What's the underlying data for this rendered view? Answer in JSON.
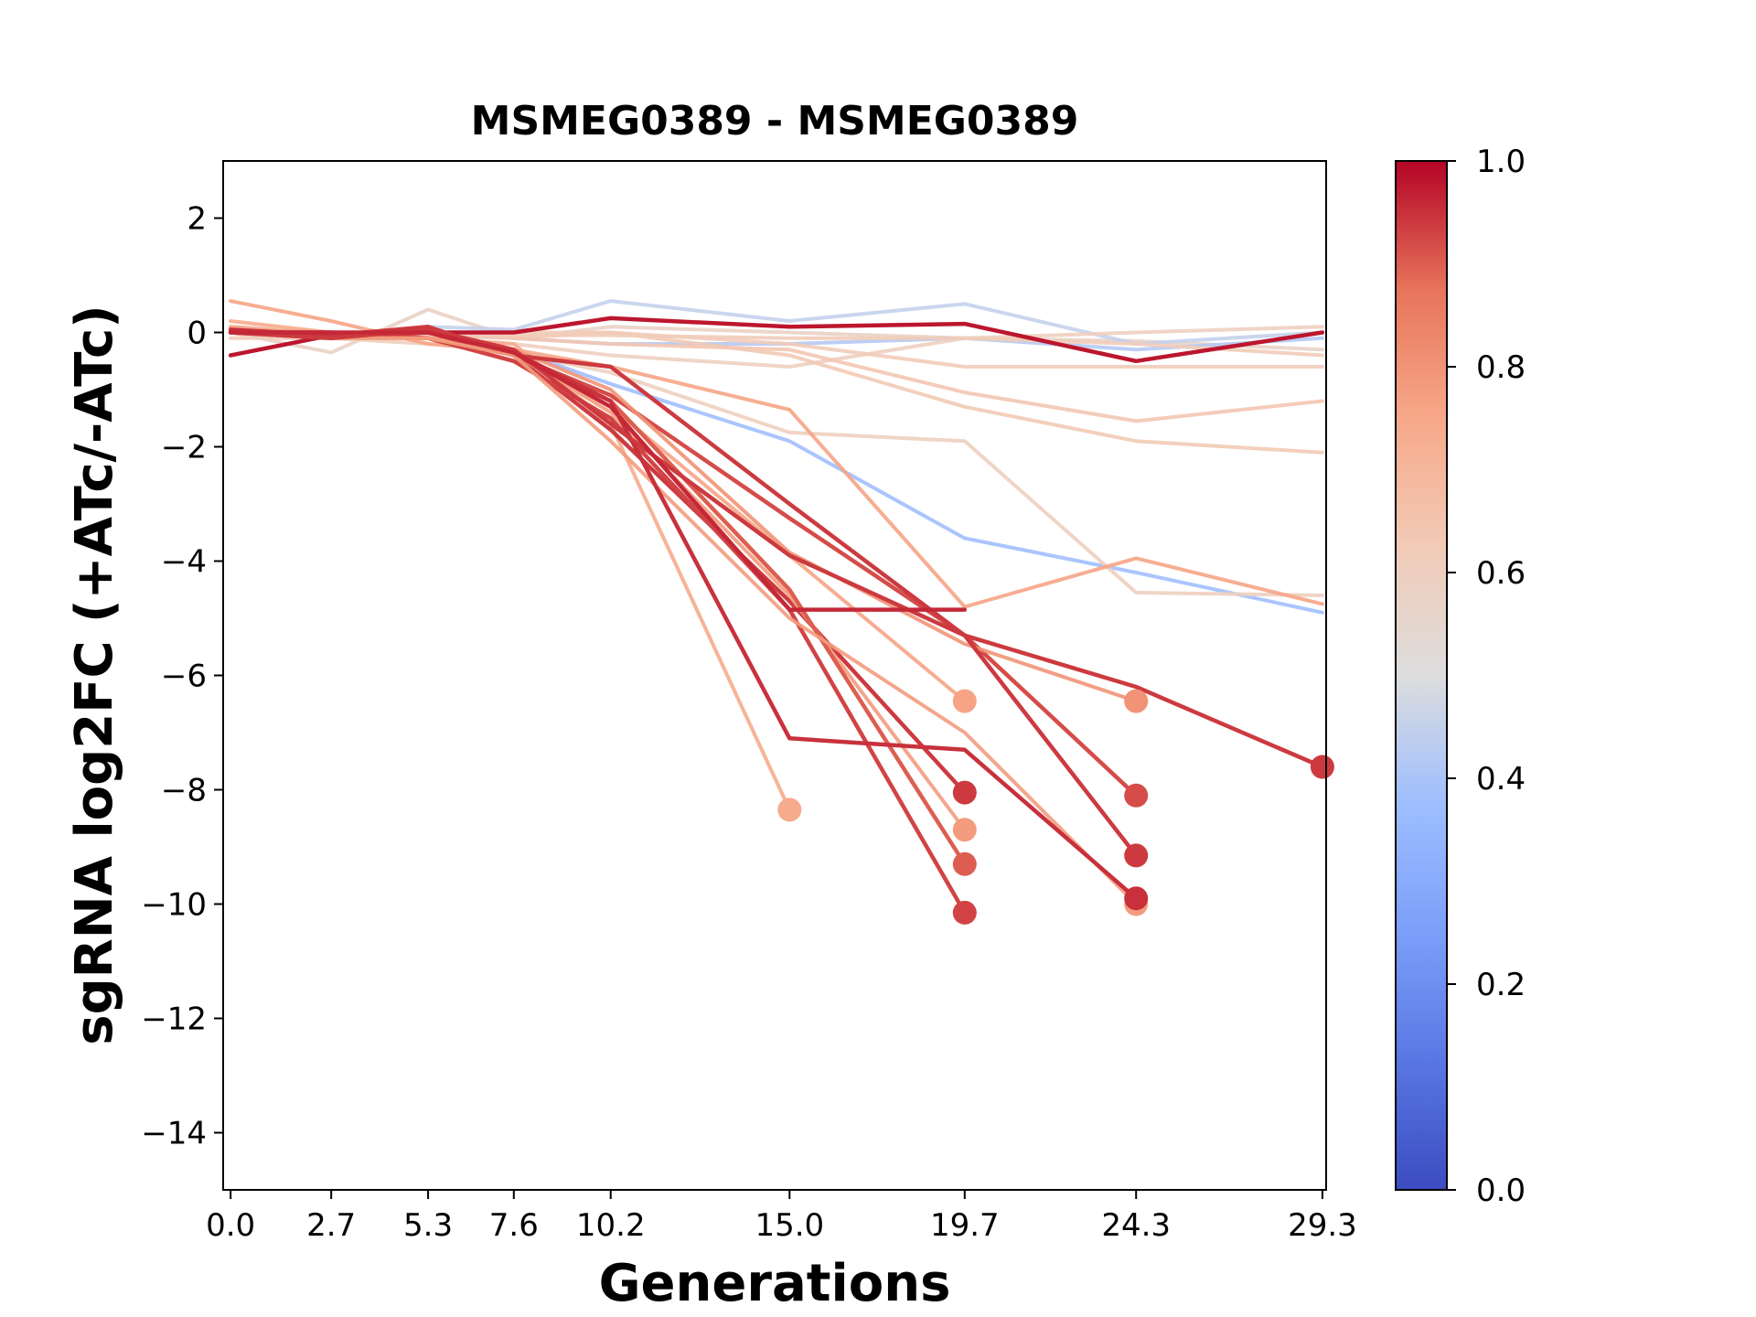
{
  "chart_data": {
    "type": "line",
    "title": "MSMEG0389 - MSMEG0389",
    "xlabel": "Generations",
    "ylabel": "sgRNA log2FC (+ATc/-ATc)",
    "x_ticks": [
      "0.0",
      "2.7",
      "5.3",
      "7.6",
      "10.2",
      "15.0",
      "19.7",
      "24.3",
      "29.3"
    ],
    "x_tick_values": [
      0.0,
      2.7,
      5.3,
      7.6,
      10.2,
      15.0,
      19.7,
      24.3,
      29.3
    ],
    "y_ticks": [
      2,
      0,
      -2,
      -4,
      -6,
      -8,
      -10,
      -12,
      -14
    ],
    "y_tick_labels": [
      "2",
      "0",
      "−2",
      "−4",
      "−6",
      "−8",
      "−10",
      "−12",
      "−14"
    ],
    "xlim": [
      -0.2,
      29.4
    ],
    "ylim": [
      -15,
      3
    ],
    "grid": false,
    "legend": "none",
    "colorbar": {
      "colormap": "coolwarm",
      "range": [
        0.0,
        1.0
      ],
      "ticks": [
        "0.0",
        "0.2",
        "0.4",
        "0.6",
        "0.8",
        "1.0"
      ],
      "tick_values": [
        0.0,
        0.2,
        0.4,
        0.6,
        0.8,
        1.0
      ]
    },
    "series": [
      {
        "color_value": 0.58,
        "end_marker": false,
        "x": [
          0.0,
          2.7,
          5.3,
          7.6,
          10.2,
          15.0,
          19.7,
          24.3,
          29.3
        ],
        "y": [
          0.0,
          -0.35,
          0.4,
          -0.1,
          0.1,
          0.0,
          -0.1,
          -0.15,
          -0.3
        ]
      },
      {
        "color_value": 0.45,
        "end_marker": false,
        "x": [
          0.0,
          2.7,
          5.3,
          7.6,
          10.2,
          15.0,
          19.7,
          24.3,
          29.3
        ],
        "y": [
          0.0,
          -0.1,
          0.1,
          0.05,
          0.55,
          0.2,
          0.5,
          -0.2,
          0.0
        ]
      },
      {
        "color_value": 0.42,
        "end_marker": false,
        "x": [
          0.0,
          2.7,
          5.3,
          7.6,
          10.2,
          15.0,
          19.7,
          24.3,
          29.3
        ],
        "y": [
          0.1,
          0.0,
          -0.05,
          -0.1,
          -0.2,
          -0.2,
          -0.1,
          -0.3,
          -0.1
        ]
      },
      {
        "color_value": 0.38,
        "end_marker": false,
        "x": [
          0.0,
          2.7,
          5.3,
          7.6,
          10.2,
          15.0,
          19.7,
          24.3,
          29.3
        ],
        "y": [
          0.0,
          -0.1,
          0.0,
          -0.3,
          -0.9,
          -1.9,
          -3.6,
          -4.2,
          -4.9
        ]
      },
      {
        "color_value": 0.6,
        "end_marker": false,
        "x": [
          0.0,
          2.7,
          5.3,
          7.6,
          10.2,
          15.0,
          19.7,
          24.3,
          29.3
        ],
        "y": [
          0.05,
          0.0,
          -0.1,
          -0.2,
          -0.4,
          -0.6,
          -0.1,
          0.0,
          0.1
        ]
      },
      {
        "color_value": 0.62,
        "end_marker": false,
        "x": [
          0.0,
          2.7,
          5.3,
          7.6,
          10.2,
          15.0,
          19.7,
          24.3,
          29.3
        ],
        "y": [
          0.1,
          0.0,
          -0.1,
          0.0,
          0.0,
          -0.2,
          -0.6,
          -0.6,
          -0.6
        ]
      },
      {
        "color_value": 0.63,
        "end_marker": false,
        "x": [
          0.0,
          2.7,
          5.3,
          7.6,
          10.2,
          15.0,
          19.7,
          24.3,
          29.3
        ],
        "y": [
          0.0,
          -0.05,
          -0.05,
          -0.1,
          0.0,
          -0.4,
          -1.3,
          -1.9,
          -2.1
        ]
      },
      {
        "color_value": 0.64,
        "end_marker": false,
        "x": [
          0.0,
          2.7,
          5.3,
          7.6,
          10.2,
          15.0,
          19.7,
          24.3,
          29.3
        ],
        "y": [
          0.0,
          0.0,
          0.0,
          -0.1,
          -0.2,
          -0.3,
          -1.05,
          -1.55,
          -1.2
        ]
      },
      {
        "color_value": 0.6,
        "end_marker": false,
        "x": [
          0.0,
          2.7,
          5.3,
          7.6,
          10.2,
          15.0,
          19.7,
          24.3,
          29.3
        ],
        "y": [
          0.0,
          -0.1,
          -0.2,
          -0.35,
          -0.7,
          -1.75,
          -1.9,
          -4.55,
          -4.6
        ]
      },
      {
        "color_value": 0.62,
        "end_marker": false,
        "x": [
          0.0,
          2.7,
          5.3,
          7.6,
          10.2,
          15.0,
          19.7,
          24.3,
          29.3
        ],
        "y": [
          -0.1,
          -0.1,
          -0.05,
          -0.05,
          -0.05,
          -0.1,
          -0.1,
          -0.2,
          -0.4
        ]
      },
      {
        "color_value": 0.76,
        "end_marker": false,
        "x": [
          0.0,
          2.7,
          5.3,
          7.6,
          10.2,
          15.0,
          19.7,
          24.3,
          29.3
        ],
        "y": [
          0.55,
          0.2,
          -0.2,
          -0.3,
          -0.6,
          -1.35,
          -4.8,
          -3.95,
          -4.75
        ]
      },
      {
        "color_value": 0.98,
        "end_marker": false,
        "x": [
          0.0,
          2.7,
          5.3,
          7.6,
          10.2,
          15.0,
          19.7,
          24.3,
          29.3
        ],
        "y": [
          -0.4,
          -0.05,
          0.0,
          0.0,
          0.25,
          0.1,
          0.15,
          -0.5,
          0.0
        ]
      },
      {
        "color_value": 0.74,
        "end_marker": true,
        "x": [
          0.0,
          2.7,
          5.3,
          7.6,
          10.2,
          15.0
        ],
        "y": [
          0.2,
          0.0,
          -0.1,
          -0.2,
          -1.6,
          -8.35
        ]
      },
      {
        "color_value": 0.94,
        "end_marker": true,
        "x": [
          0.0,
          2.7,
          5.3,
          7.6,
          10.2,
          15.0,
          19.7
        ],
        "y": [
          0.0,
          -0.05,
          0.1,
          -0.4,
          -1.7,
          -4.7,
          -8.05
        ]
      },
      {
        "color_value": 0.76,
        "end_marker": true,
        "x": [
          0.0,
          2.7,
          5.3,
          7.6,
          10.2,
          15.0,
          19.7
        ],
        "y": [
          0.1,
          -0.05,
          -0.1,
          -0.4,
          -1.3,
          -3.9,
          -6.45
        ]
      },
      {
        "color_value": 0.78,
        "end_marker": true,
        "x": [
          0.0,
          2.7,
          5.3,
          7.6,
          10.2,
          15.0,
          19.7
        ],
        "y": [
          0.05,
          0.0,
          0.0,
          -0.35,
          -1.4,
          -4.6,
          -8.7
        ]
      },
      {
        "color_value": 0.9,
        "end_marker": true,
        "x": [
          0.0,
          2.7,
          5.3,
          7.6,
          10.2,
          15.0,
          19.7
        ],
        "y": [
          0.0,
          -0.1,
          0.0,
          -0.4,
          -1.2,
          -4.5,
          -9.3
        ]
      },
      {
        "color_value": 0.93,
        "end_marker": true,
        "x": [
          0.0,
          2.7,
          5.3,
          7.6,
          10.2,
          15.0,
          19.7
        ],
        "y": [
          0.0,
          0.0,
          -0.1,
          -0.5,
          -1.5,
          -4.85,
          -10.15
        ]
      },
      {
        "color_value": 0.92,
        "end_marker": true,
        "x": [
          0.0,
          2.7,
          5.3,
          7.6,
          10.2,
          15.0,
          19.7,
          24.3
        ],
        "y": [
          0.0,
          -0.05,
          0.0,
          -0.4,
          -1.1,
          -3.25,
          -5.3,
          -8.1
        ]
      },
      {
        "color_value": 0.8,
        "end_marker": true,
        "x": [
          0.0,
          2.7,
          5.3,
          7.6,
          10.2,
          15.0,
          19.7,
          24.3
        ],
        "y": [
          0.0,
          -0.1,
          -0.1,
          -0.3,
          -1.0,
          -3.85,
          -5.45,
          -6.45
        ]
      },
      {
        "color_value": 0.94,
        "end_marker": true,
        "x": [
          0.0,
          2.7,
          5.3,
          7.6,
          10.2,
          15.0,
          19.7,
          24.3
        ],
        "y": [
          0.0,
          -0.05,
          0.0,
          -0.4,
          -0.6,
          -3.0,
          -5.3,
          -9.15
        ]
      },
      {
        "color_value": 0.78,
        "end_marker": true,
        "x": [
          0.0,
          2.7,
          5.3,
          7.6,
          10.2,
          15.0,
          19.7,
          24.3
        ],
        "y": [
          0.0,
          -0.1,
          -0.1,
          -0.4,
          -1.9,
          -5.0,
          -7.0,
          -10.0
        ]
      },
      {
        "color_value": 0.95,
        "end_marker": true,
        "x": [
          0.0,
          2.7,
          5.3,
          7.6,
          10.2,
          15.0,
          19.7,
          24.3
        ],
        "y": [
          0.05,
          -0.05,
          0.05,
          -0.35,
          -1.2,
          -7.1,
          -7.3,
          -9.9
        ]
      },
      {
        "color_value": 0.94,
        "end_marker": true,
        "x": [
          0.0,
          2.7,
          5.3,
          7.6,
          10.2,
          15.0,
          19.7,
          24.3,
          29.3
        ],
        "y": [
          0.0,
          -0.1,
          0.05,
          -0.3,
          -1.6,
          -3.9,
          -5.3,
          -6.2,
          -7.6
        ]
      },
      {
        "color_value": 0.96,
        "end_marker": false,
        "x": [
          0.0,
          2.7,
          5.3,
          7.6,
          10.2,
          15.0,
          19.7
        ],
        "y": [
          0.0,
          0.0,
          0.0,
          -0.35,
          -1.3,
          -4.85,
          -4.85
        ]
      }
    ]
  }
}
